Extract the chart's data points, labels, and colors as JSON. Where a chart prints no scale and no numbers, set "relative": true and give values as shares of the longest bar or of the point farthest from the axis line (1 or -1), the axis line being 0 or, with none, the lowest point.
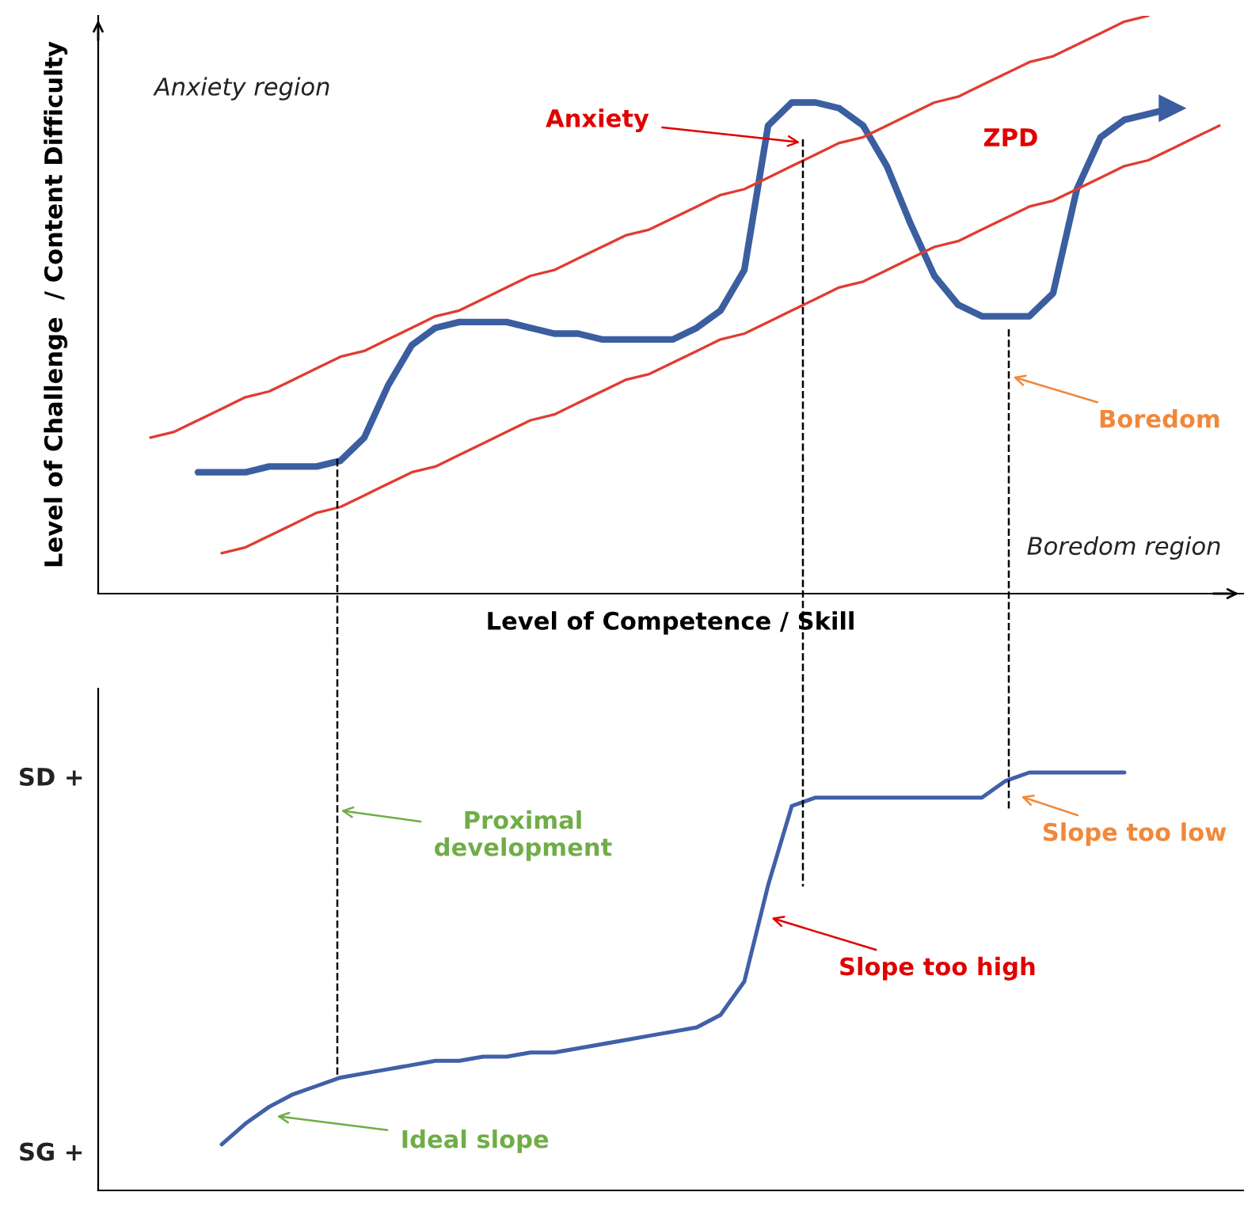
{
  "chart_data": [
    {
      "type": "line",
      "relative": true,
      "categories": [
        null,
        null,
        null,
        null,
        null,
        null,
        null,
        null,
        null,
        null,
        null,
        null,
        null,
        null,
        null,
        null,
        null,
        null,
        null,
        null,
        null,
        null,
        null,
        null,
        null,
        null,
        null,
        null,
        null,
        null,
        null,
        null,
        null,
        null,
        null,
        null,
        null,
        null,
        null,
        null,
        null,
        null,
        null,
        null,
        null,
        null,
        null,
        null
      ],
      "xlabel": "Level of Competence / Skill",
      "ylabel": "Level of Challenge  / Content Difficulty",
      "series": [
        {
          "color": "#3b5ea0",
          "values": [
            null,
            null,
            null,
            0.21,
            0.21,
            0.21,
            0.22,
            0.22,
            0.22,
            0.23,
            0.27,
            0.36,
            0.43,
            0.46,
            0.47,
            0.47,
            0.47,
            0.46,
            0.45,
            0.45,
            0.44,
            0.44,
            0.44,
            0.44,
            0.46,
            0.49,
            0.56,
            0.81,
            0.85,
            0.85,
            0.84,
            0.81,
            0.74,
            0.64,
            0.55,
            0.5,
            0.48,
            0.48,
            0.48,
            0.52,
            0.7,
            0.79,
            0.82,
            0.83,
            0.84,
            null,
            null,
            null
          ]
        },
        {
          "color": "#e03c31",
          "values": [
            null,
            0.27,
            0.28,
            0.3,
            0.32,
            0.34,
            0.35,
            0.37,
            0.39,
            0.41,
            0.42,
            0.44,
            0.46,
            0.48,
            0.49,
            0.51,
            0.53,
            0.55,
            0.56,
            0.58,
            0.6,
            0.62,
            0.63,
            0.65,
            0.67,
            0.69,
            0.7,
            0.72,
            0.74,
            0.76,
            0.78,
            0.79,
            0.81,
            0.83,
            0.85,
            0.86,
            0.88,
            0.9,
            0.92,
            0.93,
            0.95,
            0.97,
            0.99,
            1.0,
            null,
            null,
            null,
            null
          ]
        },
        {
          "color": "#e03c31",
          "values": [
            null,
            null,
            null,
            null,
            0.07,
            0.08,
            0.1,
            0.12,
            0.14,
            0.15,
            0.17,
            0.19,
            0.21,
            0.22,
            0.24,
            0.26,
            0.28,
            0.3,
            0.31,
            0.33,
            0.35,
            0.37,
            0.38,
            0.4,
            0.42,
            0.44,
            0.45,
            0.47,
            0.49,
            0.51,
            0.53,
            0.54,
            0.56,
            0.58,
            0.6,
            0.61,
            0.63,
            0.65,
            0.67,
            0.68,
            0.7,
            0.72,
            0.74,
            0.75,
            0.77,
            0.79,
            0.81,
            null
          ]
        }
      ],
      "annotations": [
        "Anxiety region",
        "Anxiety",
        "ZPD",
        "Boredom",
        "Boredom region"
      ]
    },
    {
      "type": "line",
      "relative": true,
      "categories": [
        null,
        null,
        null,
        null,
        null,
        null,
        null,
        null,
        null,
        null,
        null,
        null,
        null,
        null,
        null,
        null,
        null,
        null,
        null,
        null,
        null,
        null,
        null,
        null,
        null,
        null,
        null,
        null,
        null,
        null,
        null,
        null,
        null,
        null,
        null,
        null,
        null,
        null,
        null,
        null,
        null,
        null,
        null,
        null,
        null,
        null,
        null,
        null
      ],
      "series": [
        {
          "color": "#4060a8",
          "values": [
            null,
            null,
            null,
            null,
            0.11,
            0.16,
            0.2,
            0.23,
            0.25,
            0.27,
            0.28,
            0.29,
            0.3,
            0.31,
            0.31,
            0.32,
            0.32,
            0.33,
            0.33,
            0.34,
            0.35,
            0.36,
            0.37,
            0.38,
            0.39,
            0.42,
            0.5,
            0.73,
            0.92,
            0.94,
            0.94,
            0.94,
            0.94,
            0.94,
            0.94,
            0.94,
            0.94,
            0.98,
            1.0,
            1.0,
            1.0,
            1.0,
            1.0,
            null,
            null,
            null,
            null,
            null
          ]
        }
      ],
      "annotations": [
        "Proximal\ndevelopment",
        "Slope too high",
        "Slope too low",
        "Ideal slope",
        "SD +",
        "SG +"
      ]
    }
  ]
}
